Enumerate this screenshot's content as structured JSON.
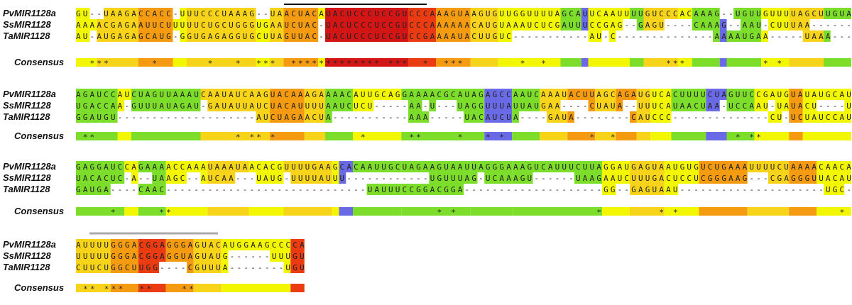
{
  "alignment": {
    "sequence_names": [
      "PvMIR1128a",
      "SsMIR1128",
      "TaMIR1128"
    ],
    "consensus_label": "Consensus",
    "blocks": [
      {
        "rows": [
          "GU--UAAGACCACC-UUUCCCUAAAG--UAACUACAUACUCCCUCCGUCCCAAAGUAAGUGUUGGUUUUAGCAUUCAAUUUUGUCCCACAAAG--UGUUGUUUUAGCUUGUAAUG",
          "AAAACGAGAAUUCUUUUUCUGCUGGGUGAAUCUAC-UACUCCCUCCGUCCCAAAAAACAUGUAAAUCUCGAUUUCCGAG--GAGU----CAAAG--AAU-CUUUAA-------AUU",
          "AU-AUGAGAGCAUG-GGUGAGAGGUGCUUAGUUAC-UACUCCCUCCGUCCGAAAAUACUUGUC-----------AU-C--------------AAAAUGAA-----UAAA---AAAGG"
        ],
        "consensus": "  ***      *       *   *  ***  ************* ***  *  ***        *  *                 ***           * *          *  "
      },
      {
        "rows": [
          "AGAUCCAUCUAGUUAAAUCAAUAUCAAGUACAAAGAAAACAUUGCAGGAAAACGCAUAGAGCCAAUCAAAUACUUAGCAGAUGUCACUUUUCUAGUUCCGAUGUAUAUGCAUUCAUU",
          "UGACCAA-GUUUAUAGAU-GAUAUUAUCUACAUUUUAAUCUCU-----AA-U---UAGGUUUAUUAUGAA----CUAUA--UUUCAUAACUAA-UCCAAU-UAUACU----UAUU",
          "GGAUGU--------------------AUCUAGAACUA-----------AAA-----UACAUCUA----GAUA--------CAUCCC--------------CU-UCUAUCCAUU-UU"
        ],
        "consensus": " **                    * ** *            *      **     *   * *            *  *                 * **             **"
      },
      {
        "rows": [
          "GAGGAUCCAGAAAACCAAAUAAAUAACACGUUUUGAAGCACAAUUGCUAGAAGUAAUUAGGGAAAGUCAUUUCUUAGGAUGAGUAAUGUGUCUGAAAUUUUCUAAAACAACACUU",
          "UACACUC-A--UAAGC--AUCAA---UAUG-UUUUAUUU------------UGUUUAG-UCAAAGU------UAAGAAUCUUUGACUCCUCGGGAAG---CGAGGGUUACAUUC",
          "GAUGA----CAAC-----------------------------UAUUUCCGGACGGA--------------------GG--GAGUAAU---------------------UGC-UU"
        ],
        "consensus": "     *      **                                      * *                    *        * *                       *"
      },
      {
        "rows": [
          "AUUUUGGGACGGAGGGAGUACAUGGAAGCCCCA",
          "UUUUUGGGACGGAGGUAGUAUG------UUUGU",
          "CUUCUGGCUUGG----CGUUUA--------UGU"
        ],
        "consensus": " ** ***  **    **"
      }
    ]
  },
  "colors": {
    "A": "#7cdd2a",
    "B": "#f2f700",
    "C": "#f7d41a",
    "D": "#f49b12",
    "E": "#eb3b12",
    "F": "#d41515",
    "G": "#6a6ae6",
    "line_black": "#111111",
    "line_gray": "#a9a9a9"
  }
}
